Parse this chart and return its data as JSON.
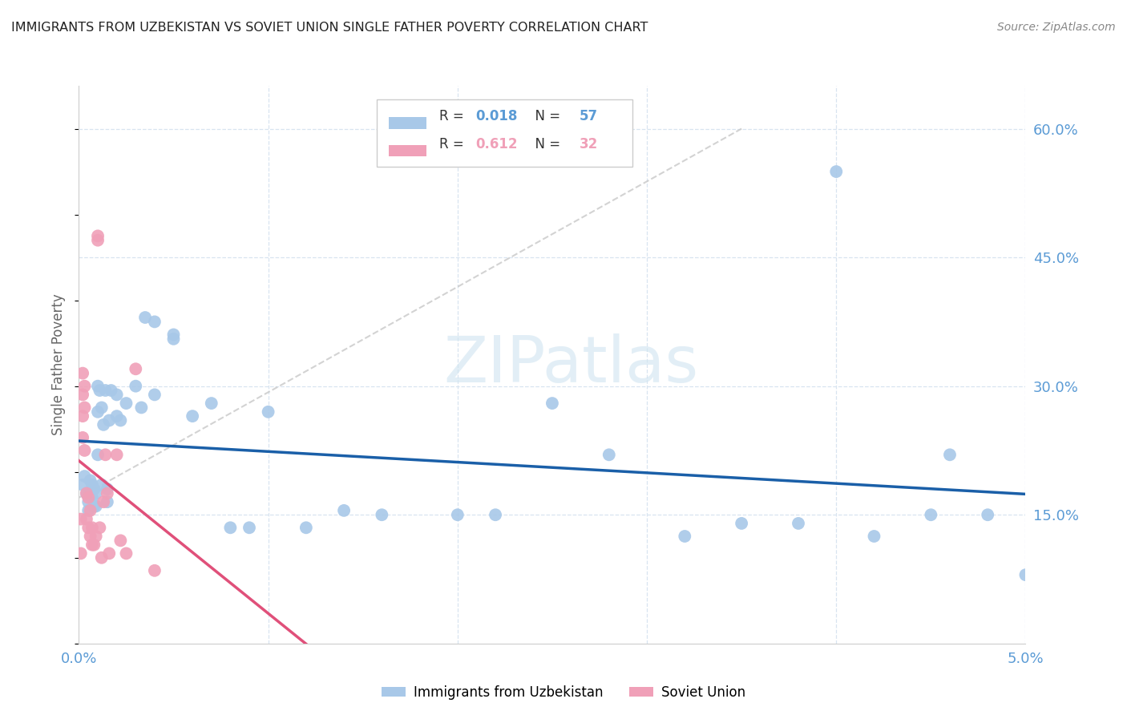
{
  "title": "IMMIGRANTS FROM UZBEKISTAN VS SOVIET UNION SINGLE FATHER POVERTY CORRELATION CHART",
  "source": "Source: ZipAtlas.com",
  "ylabel": "Single Father Poverty",
  "watermark": "ZIPatlas",
  "uzbekistan_x": [
    0.0002,
    0.0003,
    0.0004,
    0.0005,
    0.0005,
    0.0006,
    0.0006,
    0.0007,
    0.0007,
    0.0008,
    0.0008,
    0.0009,
    0.0009,
    0.001,
    0.001,
    0.001,
    0.0011,
    0.0012,
    0.0012,
    0.0013,
    0.0014,
    0.0015,
    0.0015,
    0.0016,
    0.0017,
    0.002,
    0.002,
    0.0022,
    0.0025,
    0.003,
    0.0033,
    0.0035,
    0.004,
    0.004,
    0.005,
    0.005,
    0.006,
    0.007,
    0.008,
    0.009,
    0.01,
    0.012,
    0.014,
    0.016,
    0.02,
    0.022,
    0.025,
    0.028,
    0.032,
    0.035,
    0.038,
    0.04,
    0.042,
    0.045,
    0.048,
    0.05,
    0.046
  ],
  "uzbekistan_y": [
    0.185,
    0.195,
    0.175,
    0.165,
    0.155,
    0.19,
    0.175,
    0.185,
    0.17,
    0.18,
    0.16,
    0.175,
    0.16,
    0.3,
    0.27,
    0.22,
    0.295,
    0.275,
    0.185,
    0.255,
    0.295,
    0.18,
    0.165,
    0.26,
    0.295,
    0.29,
    0.265,
    0.26,
    0.28,
    0.3,
    0.275,
    0.38,
    0.375,
    0.29,
    0.355,
    0.36,
    0.265,
    0.28,
    0.135,
    0.135,
    0.27,
    0.135,
    0.155,
    0.15,
    0.15,
    0.15,
    0.28,
    0.22,
    0.125,
    0.14,
    0.14,
    0.55,
    0.125,
    0.15,
    0.15,
    0.08,
    0.22
  ],
  "soviet_x": [
    0.0001,
    0.0001,
    0.0002,
    0.0002,
    0.0002,
    0.0002,
    0.0003,
    0.0003,
    0.0003,
    0.0004,
    0.0004,
    0.0005,
    0.0005,
    0.0006,
    0.0006,
    0.0007,
    0.0007,
    0.0008,
    0.0009,
    0.001,
    0.001,
    0.0011,
    0.0012,
    0.0013,
    0.0014,
    0.0015,
    0.0016,
    0.002,
    0.0022,
    0.0025,
    0.003,
    0.004
  ],
  "soviet_y": [
    0.145,
    0.105,
    0.315,
    0.29,
    0.265,
    0.24,
    0.3,
    0.275,
    0.225,
    0.175,
    0.145,
    0.17,
    0.135,
    0.155,
    0.125,
    0.135,
    0.115,
    0.115,
    0.125,
    0.47,
    0.475,
    0.135,
    0.1,
    0.165,
    0.22,
    0.175,
    0.105,
    0.22,
    0.12,
    0.105,
    0.32,
    0.085
  ],
  "xlim": [
    0.0,
    0.05
  ],
  "ylim": [
    0.0,
    0.65
  ],
  "ytick_vals": [
    0.15,
    0.3,
    0.45,
    0.6
  ],
  "ytick_labels": [
    "15.0%",
    "30.0%",
    "45.0%",
    "60.0%"
  ],
  "xtick_vals": [
    0.0,
    0.01,
    0.02,
    0.03,
    0.04,
    0.05
  ],
  "background_color": "#ffffff",
  "scatter_color_uzbekistan": "#a8c8e8",
  "scatter_color_soviet": "#f0a0b8",
  "line_color_uzbekistan": "#1a5fa8",
  "line_color_soviet": "#e0507a",
  "line_color_dashed": "#c8c8c8",
  "tick_color": "#5b9bd5",
  "title_color": "#222222",
  "source_color": "#888888",
  "watermark_color": "#d0e4f0",
  "ylabel_color": "#666666",
  "grid_color": "#d8e4f0"
}
